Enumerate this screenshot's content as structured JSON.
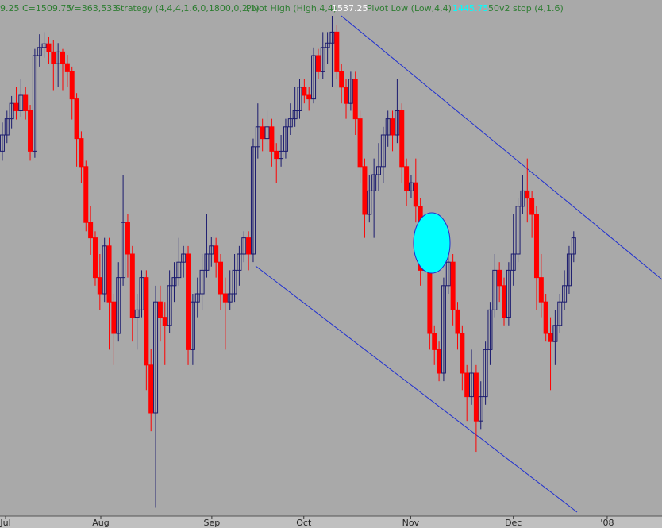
{
  "chart_data": {
    "type": "candlestick",
    "header": [
      "9.25",
      "C=1509.75",
      "V=363,533",
      "Strategy (4,4,4,1.6,0,1800,0,2,1)",
      "Pivot High (High,4,4)",
      "1537.25",
      "Pivot Low (Low,4,4)",
      "1445.75",
      "50v2 stop (4,1.6)"
    ],
    "header_colors": [
      "#2e7d32",
      "#2e7d32",
      "#2e7d32",
      "#2e7d32",
      "#2e7d32",
      "#ffffff",
      "#2e7d32",
      "#00ffff",
      "#2e7d32"
    ],
    "up_color": "#1a1a6e",
    "down_color": "#ff0000",
    "ylim": [
      1367.15,
      1542.65
    ],
    "xlim": [
      -0.5,
      142
    ],
    "xticks": [
      {
        "value": 0.7,
        "label": "Jul"
      },
      {
        "value": 21.2,
        "label": "Aug"
      },
      {
        "value": 45.1,
        "label": "Sep"
      },
      {
        "value": 64.9,
        "label": "Oct"
      },
      {
        "value": 87.9,
        "label": "Nov"
      },
      {
        "value": 110,
        "label": "Dec"
      },
      {
        "value": 130.2,
        "label": "'08"
      }
    ],
    "ohlc": [
      [
        1491.25,
        1501,
        1488,
        1496.75
      ],
      [
        1496.75,
        1505,
        1494,
        1502.25
      ],
      [
        1502.25,
        1510,
        1499,
        1507.5
      ],
      [
        1507.5,
        1513,
        1502,
        1505
      ],
      [
        1505,
        1515.75,
        1503,
        1510.25
      ],
      [
        1510.25,
        1513,
        1502,
        1505
      ],
      [
        1505,
        1507,
        1488,
        1491.25
      ],
      [
        1491.25,
        1526,
        1489,
        1523.75
      ],
      [
        1523.75,
        1531,
        1520,
        1526.5
      ],
      [
        1526.5,
        1531.75,
        1523,
        1527.75
      ],
      [
        1527.75,
        1530,
        1521,
        1525
      ],
      [
        1525,
        1529,
        1512,
        1521
      ],
      [
        1521,
        1528,
        1513,
        1525
      ],
      [
        1525,
        1526,
        1512,
        1521
      ],
      [
        1521,
        1524,
        1513,
        1518.25
      ],
      [
        1518.25,
        1520,
        1502,
        1509
      ],
      [
        1509,
        1511,
        1486,
        1495.5
      ],
      [
        1495.5,
        1498,
        1480.5,
        1486
      ],
      [
        1486,
        1488,
        1464,
        1467
      ],
      [
        1467,
        1472.5,
        1456,
        1461.75
      ],
      [
        1461.75,
        1464,
        1445.5,
        1448.25
      ],
      [
        1448.25,
        1456.25,
        1437.25,
        1442.75
      ],
      [
        1442.75,
        1461.75,
        1440,
        1459
      ],
      [
        1459,
        1461.75,
        1423.75,
        1440
      ],
      [
        1440,
        1442.75,
        1418.5,
        1429.25
      ],
      [
        1429.25,
        1453.5,
        1426.5,
        1448.25
      ],
      [
        1448.25,
        1483.25,
        1445.5,
        1467
      ],
      [
        1467,
        1469.75,
        1448.25,
        1456.25
      ],
      [
        1456.25,
        1459,
        1426.5,
        1434.75
      ],
      [
        1434.75,
        1442.75,
        1423.75,
        1437.25
      ],
      [
        1437.25,
        1450.75,
        1434.75,
        1448.25
      ],
      [
        1448.25,
        1450.75,
        1410,
        1418.5
      ],
      [
        1418.5,
        1424,
        1396,
        1402.25
      ],
      [
        1402.25,
        1445.5,
        1370,
        1440
      ],
      [
        1440,
        1445.5,
        1426.5,
        1434.75
      ],
      [
        1434.75,
        1440,
        1418.5,
        1432
      ],
      [
        1432,
        1450.75,
        1429.25,
        1445.5
      ],
      [
        1445.5,
        1453.5,
        1440,
        1448.25
      ],
      [
        1448.25,
        1461.75,
        1445.5,
        1453.5
      ],
      [
        1453.5,
        1459,
        1448.25,
        1456.25
      ],
      [
        1456.25,
        1459,
        1418.5,
        1423.75
      ],
      [
        1423.75,
        1442.75,
        1418.5,
        1440
      ],
      [
        1440,
        1448.25,
        1434.75,
        1442.75
      ],
      [
        1442.75,
        1456.25,
        1437.25,
        1450.75
      ],
      [
        1450.75,
        1470,
        1448.25,
        1456.25
      ],
      [
        1456.25,
        1462,
        1452,
        1459
      ],
      [
        1459,
        1461.75,
        1448.25,
        1453.5
      ],
      [
        1453.5,
        1456.25,
        1437.25,
        1442.75
      ],
      [
        1442.75,
        1448.25,
        1423.75,
        1440
      ],
      [
        1440,
        1450.75,
        1437.25,
        1442.75
      ],
      [
        1442.75,
        1456.25,
        1440,
        1450.75
      ],
      [
        1450.75,
        1459,
        1445.5,
        1456.25
      ],
      [
        1456.25,
        1464,
        1453.5,
        1461.75
      ],
      [
        1461.75,
        1464,
        1450.75,
        1456.25
      ],
      [
        1456.25,
        1495.5,
        1453.5,
        1492.75
      ],
      [
        1492.75,
        1507.5,
        1488.75,
        1499.5
      ],
      [
        1499.5,
        1502.25,
        1491.25,
        1495.5
      ],
      [
        1495.5,
        1505,
        1491.25,
        1499.5
      ],
      [
        1499.5,
        1502.25,
        1486,
        1491.25
      ],
      [
        1491.25,
        1494,
        1480.5,
        1488.75
      ],
      [
        1488.75,
        1496.75,
        1486,
        1491.25
      ],
      [
        1491.25,
        1502.25,
        1488.75,
        1499.5
      ],
      [
        1499.5,
        1507.5,
        1496.75,
        1502.25
      ],
      [
        1502.25,
        1513,
        1499.5,
        1505
      ],
      [
        1505,
        1515.75,
        1502.25,
        1513
      ],
      [
        1513,
        1515.75,
        1507.5,
        1510.25
      ],
      [
        1510.25,
        1513,
        1505,
        1509
      ],
      [
        1509,
        1526.5,
        1507.5,
        1523.75
      ],
      [
        1523.75,
        1526,
        1515.75,
        1518.25
      ],
      [
        1518.25,
        1531.75,
        1515.75,
        1526.5
      ],
      [
        1526.5,
        1531.75,
        1521,
        1528
      ],
      [
        1528,
        1537.25,
        1513,
        1531.75
      ],
      [
        1531.75,
        1534,
        1515.75,
        1518.25
      ],
      [
        1518.25,
        1521,
        1507.5,
        1513
      ],
      [
        1513,
        1515.75,
        1502.25,
        1507.5
      ],
      [
        1507.5,
        1518.25,
        1505,
        1515.75
      ],
      [
        1515.75,
        1518.25,
        1496.75,
        1502.25
      ],
      [
        1502.25,
        1505,
        1480.5,
        1486
      ],
      [
        1486,
        1488.75,
        1461.75,
        1469.75
      ],
      [
        1469.75,
        1483.25,
        1467,
        1477.75
      ],
      [
        1477.75,
        1488.75,
        1461.75,
        1483.25
      ],
      [
        1483.25,
        1494,
        1477.75,
        1486
      ],
      [
        1486,
        1499.5,
        1480.5,
        1496.75
      ],
      [
        1496.75,
        1505,
        1492.75,
        1502.25
      ],
      [
        1502.25,
        1505,
        1491.25,
        1496.75
      ],
      [
        1496.75,
        1515.75,
        1494,
        1505
      ],
      [
        1505,
        1507.5,
        1480.5,
        1486
      ],
      [
        1486,
        1488.75,
        1472.5,
        1477.75
      ],
      [
        1477.75,
        1483.25,
        1475.25,
        1480.5
      ],
      [
        1480.5,
        1488.75,
        1467,
        1472.5
      ],
      [
        1472.5,
        1475.25,
        1445.5,
        1450.75
      ],
      [
        1450.75,
        1469.75,
        1448.25,
        1459
      ],
      [
        1459,
        1461.75,
        1423.75,
        1429.25
      ],
      [
        1429.25,
        1432,
        1418.5,
        1423.75
      ],
      [
        1423.75,
        1426.5,
        1413,
        1415.75
      ],
      [
        1415.75,
        1448.25,
        1413,
        1445.5
      ],
      [
        1445.5,
        1461.75,
        1442.75,
        1453.5
      ],
      [
        1453.5,
        1456.25,
        1432,
        1437.25
      ],
      [
        1437.25,
        1440,
        1423.75,
        1429.25
      ],
      [
        1429.25,
        1432,
        1410,
        1415.75
      ],
      [
        1415.75,
        1418.5,
        1399.5,
        1407.75
      ],
      [
        1407.75,
        1423.75,
        1405,
        1415.75
      ],
      [
        1415.75,
        1418.5,
        1389,
        1399.5
      ],
      [
        1399.5,
        1413,
        1396.75,
        1407.75
      ],
      [
        1407.75,
        1426.5,
        1405,
        1423.75
      ],
      [
        1423.75,
        1440,
        1418.5,
        1437.25
      ],
      [
        1437.25,
        1456.25,
        1434.75,
        1450.75
      ],
      [
        1450.75,
        1453.5,
        1440,
        1445.5
      ],
      [
        1445.5,
        1448.25,
        1432,
        1434.75
      ],
      [
        1434.75,
        1453.5,
        1432,
        1450.75
      ],
      [
        1450.75,
        1469.75,
        1445.5,
        1456.25
      ],
      [
        1456.25,
        1475.25,
        1453.5,
        1472.5
      ],
      [
        1472.5,
        1483.25,
        1469.75,
        1477.75
      ],
      [
        1477.75,
        1488.75,
        1467,
        1475.25
      ],
      [
        1475.25,
        1477.75,
        1461.75,
        1469.75
      ],
      [
        1469.75,
        1472.5,
        1437.25,
        1448.25
      ],
      [
        1448.25,
        1456.25,
        1434.75,
        1440
      ],
      [
        1440,
        1442.75,
        1426.5,
        1429.25
      ],
      [
        1429.25,
        1434.75,
        1410,
        1426.5
      ],
      [
        1426.5,
        1437.25,
        1418.5,
        1432
      ],
      [
        1432,
        1442.75,
        1429.25,
        1440
      ],
      [
        1440,
        1450.75,
        1437.25,
        1445.5
      ],
      [
        1445.5,
        1459,
        1442.75,
        1456.25
      ],
      [
        1456.25,
        1464,
        1453.5,
        1461.75
      ]
    ]
  }
}
